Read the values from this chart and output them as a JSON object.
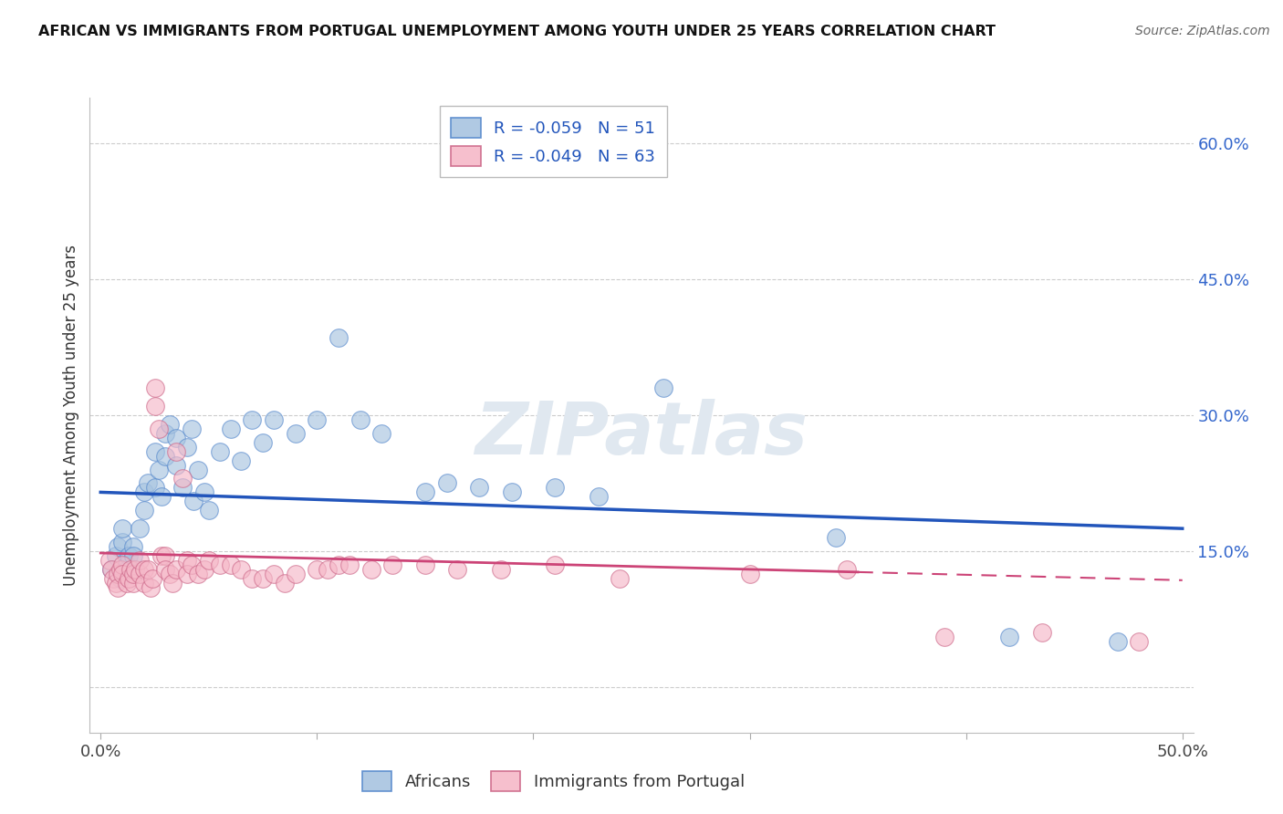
{
  "title": "AFRICAN VS IMMIGRANTS FROM PORTUGAL UNEMPLOYMENT AMONG YOUTH UNDER 25 YEARS CORRELATION CHART",
  "source": "Source: ZipAtlas.com",
  "ylabel": "Unemployment Among Youth under 25 years",
  "xlim": [
    -0.005,
    0.505
  ],
  "ylim": [
    -0.05,
    0.65
  ],
  "yticks": [
    0.0,
    0.15,
    0.3,
    0.45,
    0.6
  ],
  "ytick_labels": [
    "",
    "15.0%",
    "30.0%",
    "45.0%",
    "60.0%"
  ],
  "xticks": [
    0.0,
    0.1,
    0.2,
    0.3,
    0.4,
    0.5
  ],
  "xtick_labels": [
    "0.0%",
    "",
    "",
    "",
    "",
    "50.0%"
  ],
  "africans_color": "#a8c4e0",
  "africans_edge": "#5588cc",
  "portugal_color": "#f5b8c8",
  "portugal_edge": "#cc6688",
  "trend_blue": "#2255bb",
  "trend_pink": "#cc4477",
  "legend_R_african": "-0.059",
  "legend_N_african": "51",
  "legend_R_portugal": "-0.049",
  "legend_N_portugal": "63",
  "blue_trend_y0": 0.215,
  "blue_trend_y1": 0.175,
  "pink_trend_y0": 0.148,
  "pink_trend_y1": 0.118,
  "africans_x": [
    0.005,
    0.007,
    0.008,
    0.009,
    0.01,
    0.01,
    0.012,
    0.013,
    0.015,
    0.015,
    0.018,
    0.02,
    0.02,
    0.022,
    0.025,
    0.025,
    0.027,
    0.028,
    0.03,
    0.03,
    0.032,
    0.035,
    0.035,
    0.038,
    0.04,
    0.042,
    0.043,
    0.045,
    0.048,
    0.05,
    0.055,
    0.06,
    0.065,
    0.07,
    0.075,
    0.08,
    0.09,
    0.1,
    0.11,
    0.12,
    0.13,
    0.15,
    0.16,
    0.175,
    0.19,
    0.21,
    0.23,
    0.26,
    0.34,
    0.42,
    0.47
  ],
  "africans_y": [
    0.13,
    0.145,
    0.155,
    0.12,
    0.16,
    0.175,
    0.135,
    0.145,
    0.155,
    0.145,
    0.175,
    0.215,
    0.195,
    0.225,
    0.26,
    0.22,
    0.24,
    0.21,
    0.28,
    0.255,
    0.29,
    0.245,
    0.275,
    0.22,
    0.265,
    0.285,
    0.205,
    0.24,
    0.215,
    0.195,
    0.26,
    0.285,
    0.25,
    0.295,
    0.27,
    0.295,
    0.28,
    0.295,
    0.385,
    0.295,
    0.28,
    0.215,
    0.225,
    0.22,
    0.215,
    0.22,
    0.21,
    0.33,
    0.165,
    0.055,
    0.05
  ],
  "portugal_x": [
    0.004,
    0.005,
    0.006,
    0.007,
    0.008,
    0.008,
    0.009,
    0.01,
    0.01,
    0.012,
    0.013,
    0.014,
    0.015,
    0.015,
    0.016,
    0.018,
    0.018,
    0.02,
    0.02,
    0.022,
    0.023,
    0.024,
    0.025,
    0.025,
    0.027,
    0.028,
    0.03,
    0.03,
    0.032,
    0.033,
    0.035,
    0.035,
    0.038,
    0.04,
    0.04,
    0.042,
    0.045,
    0.048,
    0.05,
    0.055,
    0.06,
    0.065,
    0.07,
    0.075,
    0.08,
    0.085,
    0.09,
    0.1,
    0.105,
    0.11,
    0.115,
    0.125,
    0.135,
    0.15,
    0.165,
    0.185,
    0.21,
    0.24,
    0.3,
    0.345,
    0.39,
    0.435,
    0.48
  ],
  "portugal_y": [
    0.14,
    0.13,
    0.12,
    0.115,
    0.125,
    0.11,
    0.13,
    0.135,
    0.125,
    0.115,
    0.12,
    0.13,
    0.115,
    0.125,
    0.13,
    0.125,
    0.14,
    0.13,
    0.115,
    0.13,
    0.11,
    0.12,
    0.33,
    0.31,
    0.285,
    0.145,
    0.145,
    0.13,
    0.125,
    0.115,
    0.13,
    0.26,
    0.23,
    0.14,
    0.125,
    0.135,
    0.125,
    0.13,
    0.14,
    0.135,
    0.135,
    0.13,
    0.12,
    0.12,
    0.125,
    0.115,
    0.125,
    0.13,
    0.13,
    0.135,
    0.135,
    0.13,
    0.135,
    0.135,
    0.13,
    0.13,
    0.135,
    0.12,
    0.125,
    0.13,
    0.055,
    0.06,
    0.05
  ],
  "background_color": "#ffffff",
  "watermark": "ZIPatlas",
  "watermark_color": "#e0e8f0"
}
